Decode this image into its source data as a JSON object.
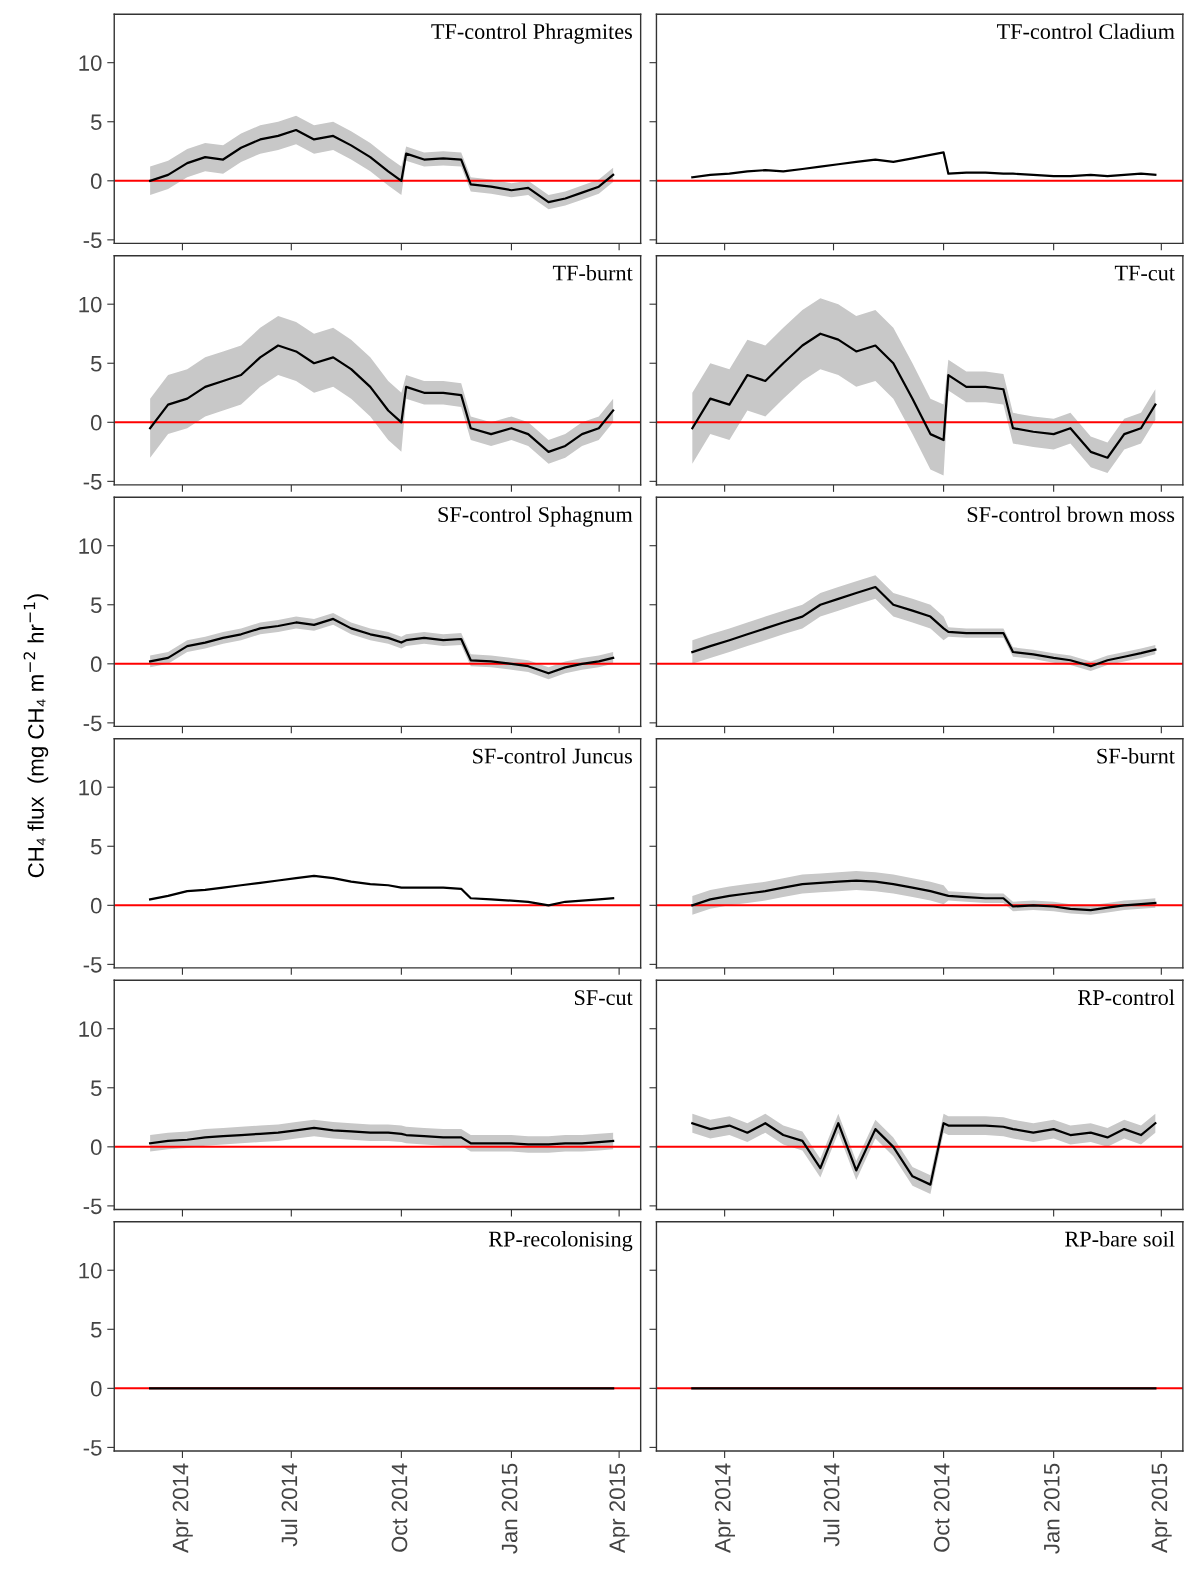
{
  "chart_data": [
    {
      "type": "line",
      "title": "TF-control Phragmites",
      "x": [
        "2014-03-05",
        "2014-03-20",
        "2014-04-05",
        "2014-04-20",
        "2014-05-05",
        "2014-05-20",
        "2014-06-05",
        "2014-06-20",
        "2014-07-05",
        "2014-07-20",
        "2014-08-05",
        "2014-08-20",
        "2014-09-05",
        "2014-09-20",
        "2014-10-01",
        "2014-10-05",
        "2014-10-20",
        "2014-11-05",
        "2014-11-20",
        "2014-11-28",
        "2014-12-15",
        "2015-01-01",
        "2015-01-15",
        "2015-02-01",
        "2015-02-15",
        "2015-03-01",
        "2015-03-15",
        "2015-03-27"
      ],
      "xlim": [
        "2014-02-03",
        "2015-04-19"
      ],
      "xticks": [
        {
          "value": "2014-04-01",
          "label": null
        },
        {
          "value": "2014-07-01",
          "label": null
        },
        {
          "value": "2014-10-01",
          "label": null
        },
        {
          "value": "2015-01-01",
          "label": null
        },
        {
          "value": "2015-04-01",
          "label": null
        }
      ],
      "ylim": [
        -5.3,
        14.1
      ],
      "yticks": [
        -5,
        0,
        5,
        10
      ],
      "tick_labels": "y",
      "ref_lines": [
        {
          "axis": "y",
          "value": 0,
          "color": "#ff0000"
        }
      ],
      "series": [
        {
          "color": "#000000",
          "values": [
            0,
            0.5,
            1.5,
            2,
            1.8,
            2.8,
            3.5,
            3.8,
            4.3,
            3.5,
            3.8,
            3,
            2,
            0.8,
            0,
            2.3,
            1.8,
            1.9,
            1.8,
            -0.3,
            -0.5,
            -0.8,
            -0.6,
            -1.8,
            -1.5,
            -1,
            -0.5,
            0.5
          ],
          "lower": [
            -1.2,
            -0.7,
            0.3,
            0.8,
            0.6,
            1.6,
            2.3,
            2.6,
            3.1,
            2.3,
            2.6,
            1.8,
            0.8,
            -0.4,
            -1.2,
            1.7,
            1.2,
            1.3,
            1.2,
            -0.9,
            -1.1,
            -1.4,
            -1.2,
            -2.4,
            -2.1,
            -1.6,
            -1.1,
            -0.1
          ],
          "upper": [
            1.2,
            1.7,
            2.7,
            3.2,
            3.0,
            4.0,
            4.7,
            5.0,
            5.5,
            4.7,
            5.0,
            4.2,
            3.2,
            2.0,
            1.2,
            2.9,
            2.4,
            2.5,
            2.4,
            0.3,
            0.1,
            -0.2,
            0,
            -1.2,
            -0.9,
            -0.4,
            0.1,
            1.1
          ]
        }
      ]
    },
    {
      "type": "line",
      "title": "TF-control Cladium",
      "x": [
        "2014-03-05",
        "2014-03-20",
        "2014-04-05",
        "2014-04-20",
        "2014-05-05",
        "2014-05-20",
        "2014-06-05",
        "2014-06-20",
        "2014-07-05",
        "2014-07-20",
        "2014-08-05",
        "2014-08-20",
        "2014-09-05",
        "2014-09-20",
        "2014-10-01",
        "2014-10-05",
        "2014-10-20",
        "2014-11-05",
        "2014-11-20",
        "2014-11-28",
        "2014-12-15",
        "2015-01-01",
        "2015-01-15",
        "2015-02-01",
        "2015-02-15",
        "2015-03-01",
        "2015-03-15",
        "2015-03-27"
      ],
      "xlim": [
        "2014-02-03",
        "2015-04-19"
      ],
      "xticks": [
        {
          "value": "2014-04-01",
          "label": null
        },
        {
          "value": "2014-07-01",
          "label": null
        },
        {
          "value": "2014-10-01",
          "label": null
        },
        {
          "value": "2015-01-01",
          "label": null
        },
        {
          "value": "2015-04-01",
          "label": null
        }
      ],
      "ylim": [
        -5.3,
        14.1
      ],
      "yticks": [
        -5,
        0,
        5,
        10
      ],
      "tick_labels": false,
      "ref_lines": [
        {
          "axis": "y",
          "value": 0,
          "color": "#ff0000"
        }
      ],
      "series": [
        {
          "color": "#000000",
          "values": [
            0.3,
            0.5,
            0.6,
            0.8,
            0.9,
            0.8,
            1.0,
            1.2,
            1.4,
            1.6,
            1.8,
            1.6,
            1.9,
            2.2,
            2.4,
            0.6,
            0.7,
            0.7,
            0.6,
            0.6,
            0.5,
            0.4,
            0.4,
            0.5,
            0.4,
            0.5,
            0.6,
            0.5
          ]
        }
      ]
    },
    {
      "type": "line",
      "title": "TF-burnt",
      "x": [
        "2014-03-05",
        "2014-03-20",
        "2014-04-05",
        "2014-04-20",
        "2014-05-05",
        "2014-05-20",
        "2014-06-05",
        "2014-06-20",
        "2014-07-05",
        "2014-07-20",
        "2014-08-05",
        "2014-08-20",
        "2014-09-05",
        "2014-09-20",
        "2014-10-01",
        "2014-10-05",
        "2014-10-20",
        "2014-11-05",
        "2014-11-20",
        "2014-11-28",
        "2014-12-15",
        "2015-01-01",
        "2015-01-15",
        "2015-02-01",
        "2015-02-15",
        "2015-03-01",
        "2015-03-15",
        "2015-03-27"
      ],
      "xlim": [
        "2014-02-03",
        "2015-04-19"
      ],
      "xticks": [
        {
          "value": "2014-04-01",
          "label": null
        },
        {
          "value": "2014-07-01",
          "label": null
        },
        {
          "value": "2014-10-01",
          "label": null
        },
        {
          "value": "2015-01-01",
          "label": null
        },
        {
          "value": "2015-04-01",
          "label": null
        }
      ],
      "ylim": [
        -5.3,
        14.1
      ],
      "yticks": [
        -5,
        0,
        5,
        10
      ],
      "tick_labels": "y",
      "ref_lines": [
        {
          "axis": "y",
          "value": 0,
          "color": "#ff0000"
        }
      ],
      "series": [
        {
          "color": "#000000",
          "values": [
            -0.5,
            1.5,
            2.0,
            3.0,
            3.5,
            4.0,
            5.5,
            6.5,
            6.0,
            5.0,
            5.5,
            4.5,
            3.0,
            1.0,
            0.0,
            3.0,
            2.5,
            2.5,
            2.3,
            -0.5,
            -1.0,
            -0.5,
            -1.0,
            -2.5,
            -2.0,
            -1.0,
            -0.5,
            1.0
          ],
          "lower": [
            -3,
            -1,
            -0.5,
            0.5,
            1,
            1.5,
            3,
            4,
            3.5,
            2.5,
            3,
            2,
            0.5,
            -1.5,
            -2.5,
            2,
            1.5,
            1.5,
            1.3,
            -1.5,
            -2,
            -1.5,
            -2,
            -3.5,
            -3,
            -2,
            -1.5,
            0
          ],
          "upper": [
            2,
            4,
            4.5,
            5.5,
            6,
            6.5,
            8,
            9,
            8.5,
            7.5,
            8,
            7,
            5.5,
            3.5,
            2.5,
            4,
            3.5,
            3.5,
            3.3,
            0.5,
            0,
            0.5,
            0,
            -1.5,
            -1,
            0,
            0.5,
            2
          ]
        }
      ]
    },
    {
      "type": "line",
      "title": "TF-cut",
      "x": [
        "2014-03-05",
        "2014-03-20",
        "2014-04-05",
        "2014-04-20",
        "2014-05-05",
        "2014-05-20",
        "2014-06-05",
        "2014-06-20",
        "2014-07-05",
        "2014-07-20",
        "2014-08-05",
        "2014-08-20",
        "2014-09-05",
        "2014-09-20",
        "2014-10-01",
        "2014-10-05",
        "2014-10-20",
        "2014-11-05",
        "2014-11-20",
        "2014-11-28",
        "2014-12-15",
        "2015-01-01",
        "2015-01-15",
        "2015-02-01",
        "2015-02-15",
        "2015-03-01",
        "2015-03-15",
        "2015-03-27"
      ],
      "xlim": [
        "2014-02-03",
        "2015-04-19"
      ],
      "xticks": [
        {
          "value": "2014-04-01",
          "label": null
        },
        {
          "value": "2014-07-01",
          "label": null
        },
        {
          "value": "2014-10-01",
          "label": null
        },
        {
          "value": "2015-01-01",
          "label": null
        },
        {
          "value": "2015-04-01",
          "label": null
        }
      ],
      "ylim": [
        -5.3,
        14.1
      ],
      "yticks": [
        -5,
        0,
        5,
        10
      ],
      "tick_labels": false,
      "ref_lines": [
        {
          "axis": "y",
          "value": 0,
          "color": "#ff0000"
        }
      ],
      "series": [
        {
          "color": "#000000",
          "values": [
            -0.5,
            2.0,
            1.5,
            4.0,
            3.5,
            5.0,
            6.5,
            7.5,
            7.0,
            6.0,
            6.5,
            5.0,
            2.0,
            -1.0,
            -1.5,
            4.0,
            3.0,
            3.0,
            2.8,
            -0.5,
            -0.8,
            -1.0,
            -0.5,
            -2.5,
            -3.0,
            -1.0,
            -0.5,
            1.5
          ],
          "lower": [
            -3.5,
            -1,
            -1.5,
            1,
            0.5,
            2,
            3.5,
            4.5,
            4,
            3,
            3.5,
            2,
            -1,
            -4,
            -4.5,
            2.7,
            1.7,
            1.7,
            1.5,
            -1.8,
            -2.1,
            -2.3,
            -1.8,
            -3.8,
            -4.3,
            -2.3,
            -1.8,
            0.2
          ],
          "upper": [
            2.5,
            5,
            4.5,
            7,
            6.5,
            8,
            9.5,
            10.5,
            10,
            9,
            9.5,
            8,
            5,
            2,
            1.5,
            5.3,
            4.3,
            4.3,
            4.1,
            0.8,
            0.5,
            0.3,
            0.8,
            -1.2,
            -1.7,
            0.3,
            0.8,
            2.8
          ]
        }
      ]
    },
    {
      "type": "line",
      "title": "SF-control Sphagnum",
      "ylabel": "CH₄ flux  (mg CH₄ m$^{−2}$ hr$^{−1}$)",
      "x": [
        "2014-03-05",
        "2014-03-20",
        "2014-04-05",
        "2014-04-20",
        "2014-05-05",
        "2014-05-20",
        "2014-06-05",
        "2014-06-20",
        "2014-07-05",
        "2014-07-20",
        "2014-08-05",
        "2014-08-20",
        "2014-09-05",
        "2014-09-20",
        "2014-10-01",
        "2014-10-05",
        "2014-10-20",
        "2014-11-05",
        "2014-11-20",
        "2014-11-28",
        "2014-12-15",
        "2015-01-01",
        "2015-01-15",
        "2015-02-01",
        "2015-02-15",
        "2015-03-01",
        "2015-03-15",
        "2015-03-27"
      ],
      "xlim": [
        "2014-02-03",
        "2015-04-19"
      ],
      "xticks": [
        {
          "value": "2014-04-01",
          "label": null
        },
        {
          "value": "2014-07-01",
          "label": null
        },
        {
          "value": "2014-10-01",
          "label": null
        },
        {
          "value": "2015-01-01",
          "label": null
        },
        {
          "value": "2015-04-01",
          "label": null
        }
      ],
      "ylim": [
        -5.3,
        14.1
      ],
      "yticks": [
        -5,
        0,
        5,
        10
      ],
      "tick_labels": "y",
      "ref_lines": [
        {
          "axis": "y",
          "value": 0,
          "color": "#ff0000"
        }
      ],
      "series": [
        {
          "color": "#000000",
          "values": [
            0.2,
            0.5,
            1.5,
            1.8,
            2.2,
            2.5,
            3.0,
            3.2,
            3.5,
            3.3,
            3.8,
            3.0,
            2.5,
            2.2,
            1.8,
            2.0,
            2.2,
            2.0,
            2.1,
            0.3,
            0.2,
            0.0,
            -0.2,
            -0.8,
            -0.3,
            0.0,
            0.2,
            0.5
          ],
          "lower": [
            -0.3,
            0,
            1,
            1.3,
            1.7,
            2,
            2.5,
            2.7,
            3,
            2.8,
            3.3,
            2.5,
            2,
            1.7,
            1.3,
            1.5,
            1.7,
            1.5,
            1.6,
            -0.2,
            -0.3,
            -0.5,
            -0.7,
            -1.3,
            -0.8,
            -0.5,
            -0.3,
            0
          ],
          "upper": [
            0.7,
            1,
            2,
            2.3,
            2.7,
            3,
            3.5,
            3.7,
            4,
            3.8,
            4.3,
            3.5,
            3,
            2.7,
            2.3,
            2.5,
            2.7,
            2.5,
            2.6,
            0.8,
            0.7,
            0.5,
            0.3,
            -0.3,
            0.2,
            0.5,
            0.7,
            1
          ]
        }
      ]
    },
    {
      "type": "line",
      "title": "SF-control brown moss",
      "x": [
        "2014-03-05",
        "2014-03-20",
        "2014-04-05",
        "2014-04-20",
        "2014-05-05",
        "2014-05-20",
        "2014-06-05",
        "2014-06-20",
        "2014-07-05",
        "2014-07-20",
        "2014-08-05",
        "2014-08-20",
        "2014-09-05",
        "2014-09-20",
        "2014-10-01",
        "2014-10-05",
        "2014-10-20",
        "2014-11-05",
        "2014-11-20",
        "2014-11-28",
        "2014-12-15",
        "2015-01-01",
        "2015-01-15",
        "2015-02-01",
        "2015-02-15",
        "2015-03-01",
        "2015-03-15",
        "2015-03-27"
      ],
      "xlim": [
        "2014-02-03",
        "2015-04-19"
      ],
      "xticks": [
        {
          "value": "2014-04-01",
          "label": null
        },
        {
          "value": "2014-07-01",
          "label": null
        },
        {
          "value": "2014-10-01",
          "label": null
        },
        {
          "value": "2015-01-01",
          "label": null
        },
        {
          "value": "2015-04-01",
          "label": null
        }
      ],
      "ylim": [
        -5.3,
        14.1
      ],
      "yticks": [
        -5,
        0,
        5,
        10
      ],
      "tick_labels": false,
      "ref_lines": [
        {
          "axis": "y",
          "value": 0,
          "color": "#ff0000"
        }
      ],
      "series": [
        {
          "color": "#000000",
          "values": [
            1.0,
            1.5,
            2.0,
            2.5,
            3.0,
            3.5,
            4.0,
            5.0,
            5.5,
            6.0,
            6.5,
            5.0,
            4.5,
            4.0,
            3.0,
            2.7,
            2.6,
            2.6,
            2.6,
            1.0,
            0.8,
            0.5,
            0.3,
            -0.2,
            0.3,
            0.6,
            0.9,
            1.2
          ],
          "lower": [
            0,
            0.5,
            1,
            1.5,
            2,
            2.5,
            3,
            4,
            4.5,
            5,
            5.5,
            4,
            3.5,
            3,
            2,
            2.3,
            2.2,
            2.2,
            2.2,
            0.6,
            0.4,
            0.1,
            -0.1,
            -0.6,
            -0.1,
            0.2,
            0.5,
            0.8
          ],
          "upper": [
            2,
            2.5,
            3,
            3.5,
            4,
            4.5,
            5,
            6,
            6.5,
            7,
            7.5,
            6,
            5.5,
            5,
            4,
            3.1,
            3,
            3,
            3,
            1.4,
            1.2,
            0.9,
            0.7,
            0.2,
            0.7,
            1,
            1.3,
            1.6
          ]
        }
      ]
    },
    {
      "type": "line",
      "title": "SF-control Juncus",
      "x": [
        "2014-03-05",
        "2014-03-20",
        "2014-04-05",
        "2014-04-20",
        "2014-05-05",
        "2014-05-20",
        "2014-06-05",
        "2014-06-20",
        "2014-07-05",
        "2014-07-20",
        "2014-08-05",
        "2014-08-20",
        "2014-09-05",
        "2014-09-20",
        "2014-10-01",
        "2014-10-05",
        "2014-10-20",
        "2014-11-05",
        "2014-11-20",
        "2014-11-28",
        "2014-12-15",
        "2015-01-01",
        "2015-01-15",
        "2015-02-01",
        "2015-02-15",
        "2015-03-01",
        "2015-03-15",
        "2015-03-27"
      ],
      "xlim": [
        "2014-02-03",
        "2015-04-19"
      ],
      "xticks": [
        {
          "value": "2014-04-01",
          "label": null
        },
        {
          "value": "2014-07-01",
          "label": null
        },
        {
          "value": "2014-10-01",
          "label": null
        },
        {
          "value": "2015-01-01",
          "label": null
        },
        {
          "value": "2015-04-01",
          "label": null
        }
      ],
      "ylim": [
        -5.3,
        14.1
      ],
      "yticks": [
        -5,
        0,
        5,
        10
      ],
      "tick_labels": "y",
      "ref_lines": [
        {
          "axis": "y",
          "value": 0,
          "color": "#ff0000"
        }
      ],
      "series": [
        {
          "color": "#000000",
          "values": [
            0.5,
            0.8,
            1.2,
            1.3,
            1.5,
            1.7,
            1.9,
            2.1,
            2.3,
            2.5,
            2.3,
            2.0,
            1.8,
            1.7,
            1.5,
            1.5,
            1.5,
            1.5,
            1.4,
            0.6,
            0.5,
            0.4,
            0.3,
            0.0,
            0.3,
            0.4,
            0.5,
            0.6
          ]
        }
      ]
    },
    {
      "type": "line",
      "title": "SF-burnt",
      "x": [
        "2014-03-05",
        "2014-03-20",
        "2014-04-05",
        "2014-04-20",
        "2014-05-05",
        "2014-05-20",
        "2014-06-05",
        "2014-06-20",
        "2014-07-05",
        "2014-07-20",
        "2014-08-05",
        "2014-08-20",
        "2014-09-05",
        "2014-09-20",
        "2014-10-01",
        "2014-10-05",
        "2014-10-20",
        "2014-11-05",
        "2014-11-20",
        "2014-11-28",
        "2014-12-15",
        "2015-01-01",
        "2015-01-15",
        "2015-02-01",
        "2015-02-15",
        "2015-03-01",
        "2015-03-15",
        "2015-03-27"
      ],
      "xlim": [
        "2014-02-03",
        "2015-04-19"
      ],
      "xticks": [
        {
          "value": "2014-04-01",
          "label": null
        },
        {
          "value": "2014-07-01",
          "label": null
        },
        {
          "value": "2014-10-01",
          "label": null
        },
        {
          "value": "2015-01-01",
          "label": null
        },
        {
          "value": "2015-04-01",
          "label": null
        }
      ],
      "ylim": [
        -5.3,
        14.1
      ],
      "yticks": [
        -5,
        0,
        5,
        10
      ],
      "tick_labels": false,
      "ref_lines": [
        {
          "axis": "y",
          "value": 0,
          "color": "#ff0000"
        }
      ],
      "series": [
        {
          "color": "#000000",
          "values": [
            0.0,
            0.5,
            0.8,
            1.0,
            1.2,
            1.5,
            1.8,
            1.9,
            2.0,
            2.1,
            2.0,
            1.8,
            1.5,
            1.2,
            0.9,
            0.8,
            0.7,
            0.6,
            0.6,
            -0.1,
            0,
            -0.1,
            -0.3,
            -0.4,
            -0.2,
            0,
            0.1,
            0.2
          ],
          "lower": [
            -0.8,
            -0.3,
            0,
            0.2,
            0.4,
            0.7,
            1,
            1.1,
            1.2,
            1.3,
            1.2,
            1,
            0.7,
            0.4,
            0.1,
            0.4,
            0.3,
            0.2,
            0.2,
            -0.5,
            -0.4,
            -0.5,
            -0.7,
            -0.8,
            -0.6,
            -0.4,
            -0.3,
            -0.2
          ],
          "upper": [
            0.8,
            1.3,
            1.6,
            1.8,
            2,
            2.3,
            2.6,
            2.7,
            2.8,
            2.9,
            2.8,
            2.6,
            2.3,
            2,
            1.7,
            1.2,
            1.1,
            1,
            1,
            0.3,
            0.4,
            0.3,
            0.1,
            0,
            0.2,
            0.4,
            0.5,
            0.6
          ]
        }
      ]
    },
    {
      "type": "line",
      "title": "SF-cut",
      "x": [
        "2014-03-05",
        "2014-03-20",
        "2014-04-05",
        "2014-04-20",
        "2014-05-05",
        "2014-05-20",
        "2014-06-05",
        "2014-06-20",
        "2014-07-05",
        "2014-07-20",
        "2014-08-05",
        "2014-08-20",
        "2014-09-05",
        "2014-09-20",
        "2014-10-01",
        "2014-10-05",
        "2014-10-20",
        "2014-11-05",
        "2014-11-20",
        "2014-11-28",
        "2014-12-15",
        "2015-01-01",
        "2015-01-15",
        "2015-02-01",
        "2015-02-15",
        "2015-03-01",
        "2015-03-15",
        "2015-03-27"
      ],
      "xlim": [
        "2014-02-03",
        "2015-04-19"
      ],
      "xticks": [
        {
          "value": "2014-04-01",
          "label": null
        },
        {
          "value": "2014-07-01",
          "label": null
        },
        {
          "value": "2014-10-01",
          "label": null
        },
        {
          "value": "2015-01-01",
          "label": null
        },
        {
          "value": "2015-04-01",
          "label": null
        }
      ],
      "ylim": [
        -5.3,
        14.1
      ],
      "yticks": [
        -5,
        0,
        5,
        10
      ],
      "tick_labels": "y",
      "ref_lines": [
        {
          "axis": "y",
          "value": 0,
          "color": "#ff0000"
        }
      ],
      "series": [
        {
          "color": "#000000",
          "values": [
            0.3,
            0.5,
            0.6,
            0.8,
            0.9,
            1.0,
            1.1,
            1.2,
            1.4,
            1.6,
            1.4,
            1.3,
            1.2,
            1.2,
            1.1,
            1.0,
            0.9,
            0.8,
            0.8,
            0.3,
            0.3,
            0.3,
            0.2,
            0.2,
            0.3,
            0.3,
            0.4,
            0.5
          ],
          "lower": [
            -0.4,
            -0.2,
            -0.1,
            0.1,
            0.2,
            0.3,
            0.4,
            0.5,
            0.7,
            0.9,
            0.7,
            0.6,
            0.5,
            0.5,
            0.4,
            0.3,
            0.2,
            0.1,
            0.1,
            -0.4,
            -0.4,
            -0.4,
            -0.5,
            -0.5,
            -0.4,
            -0.4,
            -0.3,
            -0.2
          ],
          "upper": [
            1,
            1.2,
            1.3,
            1.5,
            1.6,
            1.7,
            1.8,
            1.9,
            2.1,
            2.3,
            2.1,
            2,
            1.9,
            1.9,
            1.8,
            1.7,
            1.6,
            1.5,
            1.5,
            1,
            1,
            1,
            0.9,
            0.9,
            1,
            1,
            1.1,
            1.2
          ]
        }
      ]
    },
    {
      "type": "line",
      "title": "RP-control",
      "x": [
        "2014-03-05",
        "2014-03-20",
        "2014-04-05",
        "2014-04-20",
        "2014-05-05",
        "2014-05-20",
        "2014-06-05",
        "2014-06-20",
        "2014-07-05",
        "2014-07-20",
        "2014-08-05",
        "2014-08-20",
        "2014-09-05",
        "2014-09-20",
        "2014-10-01",
        "2014-10-05",
        "2014-10-20",
        "2014-11-05",
        "2014-11-20",
        "2014-11-28",
        "2014-12-15",
        "2015-01-01",
        "2015-01-15",
        "2015-02-01",
        "2015-02-15",
        "2015-03-01",
        "2015-03-15",
        "2015-03-27"
      ],
      "xlim": [
        "2014-02-03",
        "2015-04-19"
      ],
      "xticks": [
        {
          "value": "2014-04-01",
          "label": null
        },
        {
          "value": "2014-07-01",
          "label": null
        },
        {
          "value": "2014-10-01",
          "label": null
        },
        {
          "value": "2015-01-01",
          "label": null
        },
        {
          "value": "2015-04-01",
          "label": null
        }
      ],
      "ylim": [
        -5.3,
        14.1
      ],
      "yticks": [
        -5,
        0,
        5,
        10
      ],
      "tick_labels": false,
      "ref_lines": [
        {
          "axis": "y",
          "value": 0,
          "color": "#ff0000"
        }
      ],
      "series": [
        {
          "color": "#000000",
          "values": [
            2.0,
            1.5,
            1.8,
            1.2,
            2.0,
            1.0,
            0.5,
            -1.8,
            2.0,
            -2.0,
            1.5,
            0.0,
            -2.5,
            -3.2,
            2.0,
            1.8,
            1.8,
            1.8,
            1.7,
            1.5,
            1.2,
            1.5,
            1.0,
            1.2,
            0.8,
            1.5,
            1.0,
            2.0
          ],
          "lower": [
            1.2,
            0.7,
            1,
            0.4,
            1.2,
            0.2,
            -0.3,
            -2.6,
            1.2,
            -2.8,
            0.7,
            -0.8,
            -3.3,
            -4,
            1.2,
            1,
            1,
            1,
            0.9,
            0.7,
            0.4,
            0.7,
            0.2,
            0.4,
            0,
            0.7,
            0.2,
            1.2
          ],
          "upper": [
            2.8,
            2.3,
            2.6,
            2,
            2.8,
            1.8,
            1.3,
            -1,
            2.8,
            -1.2,
            2.3,
            0.8,
            -1.7,
            -2.4,
            2.8,
            2.6,
            2.6,
            2.6,
            2.5,
            2.3,
            2,
            2.3,
            1.8,
            2,
            1.6,
            2.3,
            1.8,
            2.8
          ]
        }
      ]
    },
    {
      "type": "line",
      "title": "RP-recolonising",
      "x": [
        "2014-03-05",
        "2014-03-20",
        "2014-04-05",
        "2014-04-20",
        "2014-05-05",
        "2014-05-20",
        "2014-06-05",
        "2014-06-20",
        "2014-07-05",
        "2014-07-20",
        "2014-08-05",
        "2014-08-20",
        "2014-09-05",
        "2014-09-20",
        "2014-10-01",
        "2014-10-05",
        "2014-10-20",
        "2014-11-05",
        "2014-11-20",
        "2014-11-28",
        "2014-12-15",
        "2015-01-01",
        "2015-01-15",
        "2015-02-01",
        "2015-02-15",
        "2015-03-01",
        "2015-03-15",
        "2015-03-27"
      ],
      "xlim": [
        "2014-02-03",
        "2015-04-19"
      ],
      "xticks": [
        {
          "value": "2014-04-01",
          "label": "Apr 2014"
        },
        {
          "value": "2014-07-01",
          "label": "Jul 2014"
        },
        {
          "value": "2014-10-01",
          "label": "Oct 2014"
        },
        {
          "value": "2015-01-01",
          "label": "Jan 2015"
        },
        {
          "value": "2015-04-01",
          "label": "Apr 2015"
        }
      ],
      "ylim": [
        -5.3,
        14.1
      ],
      "yticks": [
        -5,
        0,
        5,
        10
      ],
      "ref_lines": [
        {
          "axis": "y",
          "value": 0,
          "color": "#ff0000"
        }
      ],
      "series": [
        {
          "color": "#000000",
          "values": [
            0,
            0,
            0,
            0,
            0,
            0,
            0,
            0,
            0,
            0,
            0,
            0,
            0,
            0,
            0,
            0,
            0,
            0,
            0,
            0,
            0,
            0,
            0,
            0,
            0,
            0,
            0,
            0
          ]
        }
      ]
    },
    {
      "type": "line",
      "title": "RP-bare soil",
      "x": [
        "2014-03-05",
        "2014-03-20",
        "2014-04-05",
        "2014-04-20",
        "2014-05-05",
        "2014-05-20",
        "2014-06-05",
        "2014-06-20",
        "2014-07-05",
        "2014-07-20",
        "2014-08-05",
        "2014-08-20",
        "2014-09-05",
        "2014-09-20",
        "2014-10-01",
        "2014-10-05",
        "2014-10-20",
        "2014-11-05",
        "2014-11-20",
        "2014-11-28",
        "2014-12-15",
        "2015-01-01",
        "2015-01-15",
        "2015-02-01",
        "2015-02-15",
        "2015-03-01",
        "2015-03-15",
        "2015-03-27"
      ],
      "xlim": [
        "2014-02-03",
        "2015-04-19"
      ],
      "xticks": [
        {
          "value": "2014-04-01",
          "label": "Apr 2014"
        },
        {
          "value": "2014-07-01",
          "label": "Jul 2014"
        },
        {
          "value": "2014-10-01",
          "label": "Oct 2014"
        },
        {
          "value": "2015-01-01",
          "label": "Jan 2015"
        },
        {
          "value": "2015-04-01",
          "label": "Apr 2015"
        }
      ],
      "ylim": [
        -5.3,
        14.1
      ],
      "yticks": [
        -5,
        0,
        5,
        10
      ],
      "tick_labels": "x",
      "ref_lines": [
        {
          "axis": "y",
          "value": 0,
          "color": "#ff0000"
        }
      ],
      "series": [
        {
          "color": "#000000",
          "values": [
            0,
            0,
            0,
            0,
            0,
            0,
            0,
            0,
            0,
            0,
            0,
            0,
            0,
            0,
            0,
            0,
            0,
            0,
            0,
            0,
            0,
            0,
            0,
            0,
            0,
            0,
            0,
            0
          ]
        }
      ]
    }
  ]
}
